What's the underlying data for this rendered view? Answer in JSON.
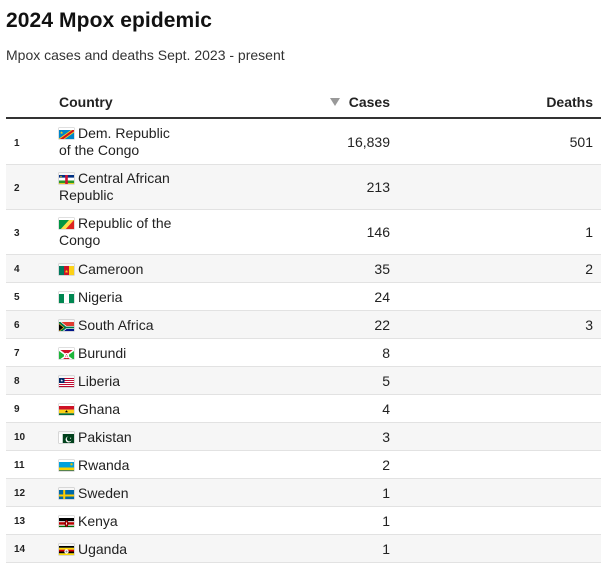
{
  "title": "2024 Mpox epidemic",
  "subtitle": "Mpox cases and deaths Sept. 2023 - present",
  "chart_data": {
    "type": "table",
    "columns": [
      "Country",
      "Cases",
      "Deaths"
    ],
    "sort_column": "Cases",
    "sort_direction": "descending",
    "rows": [
      {
        "rank": "1",
        "country": "Dem. Republic of the Congo",
        "cases": "16,839",
        "deaths": "501",
        "flag": "cd"
      },
      {
        "rank": "2",
        "country": "Central African Republic",
        "cases": "213",
        "deaths": "",
        "flag": "cf"
      },
      {
        "rank": "3",
        "country": "Republic of the Congo",
        "cases": "146",
        "deaths": "1",
        "flag": "cg"
      },
      {
        "rank": "4",
        "country": "Cameroon",
        "cases": "35",
        "deaths": "2",
        "flag": "cm"
      },
      {
        "rank": "5",
        "country": "Nigeria",
        "cases": "24",
        "deaths": "",
        "flag": "ng"
      },
      {
        "rank": "6",
        "country": "South Africa",
        "cases": "22",
        "deaths": "3",
        "flag": "za"
      },
      {
        "rank": "7",
        "country": "Burundi",
        "cases": "8",
        "deaths": "",
        "flag": "bi"
      },
      {
        "rank": "8",
        "country": "Liberia",
        "cases": "5",
        "deaths": "",
        "flag": "lr"
      },
      {
        "rank": "9",
        "country": "Ghana",
        "cases": "4",
        "deaths": "",
        "flag": "gh"
      },
      {
        "rank": "10",
        "country": "Pakistan",
        "cases": "3",
        "deaths": "",
        "flag": "pk"
      },
      {
        "rank": "11",
        "country": "Rwanda",
        "cases": "2",
        "deaths": "",
        "flag": "rw"
      },
      {
        "rank": "12",
        "country": "Sweden",
        "cases": "1",
        "deaths": "",
        "flag": "se"
      },
      {
        "rank": "13",
        "country": "Kenya",
        "cases": "1",
        "deaths": "",
        "flag": "ke"
      },
      {
        "rank": "14",
        "country": "Uganda",
        "cases": "1",
        "deaths": "",
        "flag": "ug"
      }
    ]
  }
}
